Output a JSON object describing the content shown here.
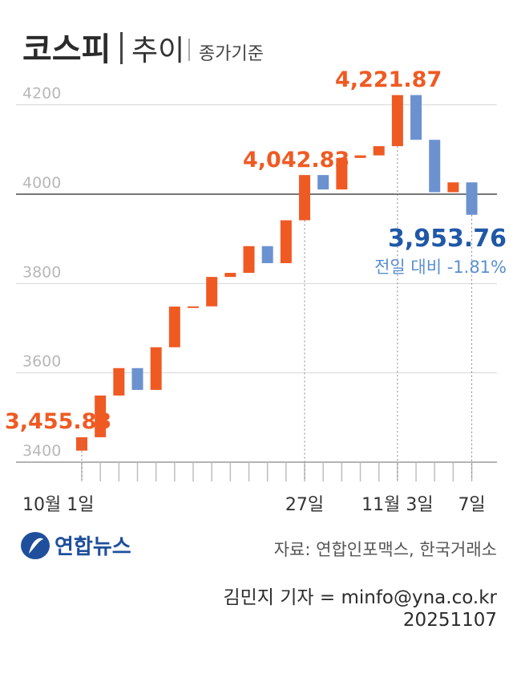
{
  "header": {
    "title_main": "코스피",
    "title_sub": "추이",
    "unit_note": "종가기준"
  },
  "chart_data": {
    "type": "waterfall",
    "title": "코스피 추이",
    "note": "종가기준",
    "ylim": [
      3400,
      4260
    ],
    "yticks": [
      3400,
      3600,
      3800,
      4000,
      4200
    ],
    "reference_line": 4000,
    "x": [
      "10/1",
      "10/2",
      "10/13",
      "10/14",
      "10/15",
      "10/16",
      "10/17",
      "10/20",
      "10/21",
      "10/22",
      "10/23",
      "10/24",
      "10/27",
      "10/28",
      "10/29",
      "10/30",
      "10/31",
      "11/3",
      "11/4",
      "11/5",
      "11/6",
      "11/7"
    ],
    "close": [
      3455.83,
      3549.21,
      3610.6,
      3561.81,
      3657.28,
      3748.37,
      3748.89,
      3814.69,
      3823.84,
      3883.68,
      3845.56,
      3941.59,
      4042.83,
      4010.5,
      4081.15,
      4086.89,
      4107.5,
      4221.87,
      4121.74,
      4004.42,
      4026.45,
      3953.76
    ],
    "x_tick_labels": [
      "10월 1일",
      "27일",
      "11월 3일",
      "7일"
    ],
    "x_tick_label_indices": [
      0,
      12,
      17,
      21
    ],
    "colors": {
      "up": "#ef5a23",
      "down": "#6b92cf"
    },
    "annotations": {
      "first": "3,455.83",
      "peak_day": "4,042.83",
      "max": "4,221.87",
      "last": "3,953.76",
      "last_change": "전일 대비 -1.81%"
    }
  },
  "footer": {
    "logo_text": "연합뉴스",
    "source": "자료: 연합인포맥스, 한국거래소",
    "credit": "김민지 기자 = minfo@yna.co.kr",
    "date": "20251107"
  }
}
